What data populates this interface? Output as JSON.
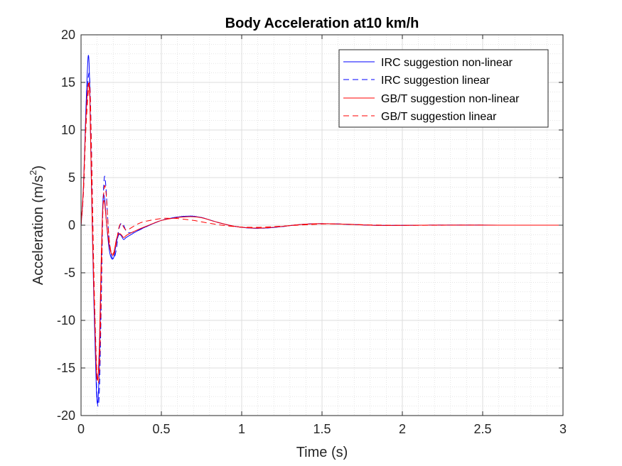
{
  "chart_data": {
    "type": "line",
    "title": "Body Acceleration at10 km/h",
    "xlabel": "Time (s)",
    "ylabel_main": "Acceleration (m/s",
    "ylabel_sup": "2",
    "ylabel_close": ")",
    "xlim": [
      0,
      3
    ],
    "ylim": [
      -20,
      20
    ],
    "xticks": [
      0,
      0.5,
      1,
      1.5,
      2,
      2.5,
      3
    ],
    "xtick_labels": [
      "0",
      "0.5",
      "1",
      "1.5",
      "2",
      "2.5",
      "3"
    ],
    "yticks": [
      -20,
      -15,
      -10,
      -5,
      0,
      5,
      10,
      15,
      20
    ],
    "ytick_labels": [
      "-20",
      "-15",
      "-10",
      "-5",
      "0",
      "5",
      "10",
      "15",
      "20"
    ],
    "grid": true,
    "minor_grid": true,
    "legend_position": "top-right",
    "series": [
      {
        "name": "IRC suggestion non-linear",
        "color": "#0000ff",
        "style": "solid",
        "x": [
          0,
          0.015,
          0.03,
          0.045,
          0.055,
          0.065,
          0.08,
          0.095,
          0.105,
          0.115,
          0.125,
          0.135,
          0.145,
          0.16,
          0.175,
          0.19,
          0.205,
          0.22,
          0.235,
          0.25,
          0.265,
          0.28,
          0.3,
          0.35,
          0.4,
          0.5,
          0.6,
          0.68,
          0.75,
          0.85,
          0.95,
          1.05,
          1.15,
          1.25,
          1.35,
          1.45,
          1.55,
          1.65,
          1.75,
          1.85,
          2.0,
          2.2,
          2.4,
          2.6,
          2.8,
          3.0
        ],
        "y": [
          0,
          4,
          12,
          17.8,
          14,
          4,
          -8,
          -17,
          -18.5,
          -14,
          -5,
          2,
          3,
          0,
          -2.5,
          -3.5,
          -3.3,
          -1.8,
          -1.0,
          -1.1,
          -1.5,
          -1.3,
          -1.1,
          -0.6,
          -0.2,
          0.5,
          0.85,
          0.95,
          0.8,
          0.3,
          -0.1,
          -0.3,
          -0.3,
          -0.15,
          0.05,
          0.15,
          0.15,
          0.1,
          0.03,
          -0.02,
          -0.02,
          0.01,
          0.01,
          0,
          0,
          0
        ]
      },
      {
        "name": "IRC suggestion linear",
        "color": "#0000ff",
        "style": "dashed",
        "x": [
          0,
          0.015,
          0.03,
          0.045,
          0.055,
          0.065,
          0.08,
          0.095,
          0.105,
          0.115,
          0.125,
          0.135,
          0.145,
          0.155,
          0.165,
          0.175,
          0.19,
          0.205,
          0.22,
          0.235,
          0.25,
          0.265,
          0.28,
          0.3,
          0.35,
          0.4,
          0.5,
          0.6,
          0.68,
          0.75,
          0.85,
          0.95,
          1.05,
          1.15,
          1.25,
          1.35,
          1.45,
          1.55,
          1.65,
          1.75,
          1.85,
          2.0,
          2.2,
          2.4,
          2.6,
          2.8,
          3.0
        ],
        "y": [
          0,
          3.5,
          11,
          15.5,
          15,
          8,
          -6,
          -16,
          -19,
          -17,
          -9,
          1,
          5,
          4,
          1,
          -1.5,
          -3.2,
          -3.5,
          -2.5,
          -0.5,
          0.2,
          0,
          -0.6,
          -0.8,
          -0.6,
          -0.2,
          0.5,
          0.85,
          0.95,
          0.8,
          0.3,
          -0.1,
          -0.3,
          -0.3,
          -0.15,
          0.05,
          0.15,
          0.15,
          0.1,
          0.03,
          -0.02,
          -0.02,
          0.01,
          0.01,
          0,
          0,
          0
        ]
      },
      {
        "name": "GB/T suggestion non-linear",
        "color": "#ff0000",
        "style": "solid",
        "x": [
          0,
          0.015,
          0.03,
          0.045,
          0.055,
          0.065,
          0.08,
          0.095,
          0.105,
          0.115,
          0.125,
          0.135,
          0.145,
          0.16,
          0.175,
          0.19,
          0.205,
          0.22,
          0.235,
          0.25,
          0.265,
          0.28,
          0.3,
          0.35,
          0.4,
          0.5,
          0.6,
          0.68,
          0.75,
          0.85,
          0.95,
          1.05,
          1.15,
          1.25,
          1.35,
          1.45,
          1.55,
          1.65,
          1.75,
          1.85,
          2.0,
          2.2,
          2.4,
          2.6,
          2.8,
          3.0
        ],
        "y": [
          0,
          4,
          11,
          14.8,
          13,
          4,
          -7,
          -15,
          -16,
          -12,
          -4,
          1.5,
          2.5,
          0,
          -2,
          -3,
          -2.8,
          -1.5,
          -0.9,
          -1.0,
          -1.3,
          -1.1,
          -0.9,
          -0.5,
          -0.15,
          0.5,
          0.8,
          0.9,
          0.78,
          0.3,
          -0.1,
          -0.28,
          -0.28,
          -0.13,
          0.05,
          0.15,
          0.15,
          0.1,
          0.03,
          -0.02,
          -0.02,
          0.01,
          0.01,
          0,
          0,
          0
        ]
      },
      {
        "name": "GB/T suggestion linear",
        "color": "#ff0000",
        "style": "dashed",
        "x": [
          0,
          0.015,
          0.03,
          0.045,
          0.055,
          0.065,
          0.08,
          0.095,
          0.105,
          0.115,
          0.125,
          0.135,
          0.145,
          0.155,
          0.165,
          0.175,
          0.19,
          0.205,
          0.22,
          0.235,
          0.25,
          0.265,
          0.28,
          0.3,
          0.35,
          0.4,
          0.5,
          0.55,
          0.6,
          0.7,
          0.8,
          0.9,
          1.0,
          1.1,
          1.2,
          1.3,
          1.4,
          1.5,
          1.6,
          1.7,
          1.8,
          2.0,
          2.2,
          2.4,
          2.6,
          2.8,
          3.0
        ],
        "y": [
          0,
          3.5,
          10,
          14,
          14.5,
          8,
          -5,
          -14,
          -16.5,
          -15,
          -8,
          1,
          4,
          3.5,
          1,
          -1.5,
          -3,
          -3,
          -1.8,
          -0.3,
          0.2,
          -0.2,
          -0.5,
          -0.4,
          0.1,
          0.4,
          0.7,
          0.72,
          0.7,
          0.5,
          0.2,
          -0.05,
          -0.2,
          -0.22,
          -0.15,
          -0.05,
          0.05,
          0.12,
          0.12,
          0.08,
          0.03,
          -0.02,
          -0.01,
          0.01,
          0,
          0,
          0
        ]
      }
    ]
  }
}
